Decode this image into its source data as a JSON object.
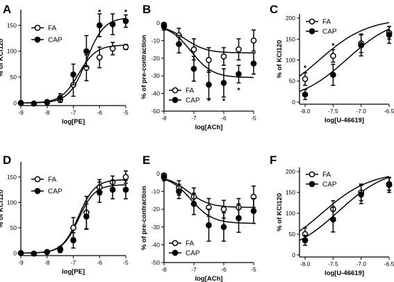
{
  "chart_data": [
    {
      "panel": "A",
      "type": "scatter",
      "xlabel": "log[PE]",
      "ylabel": "% of KCl120",
      "xlim": [
        -9,
        -5
      ],
      "ylim": [
        -5,
        180
      ],
      "xticks": [
        -9,
        -8,
        -7,
        -6,
        -5
      ],
      "yticks": [
        0,
        50,
        100,
        150
      ],
      "series": [
        {
          "name": "FA",
          "marker": "open",
          "x": [
            -9,
            -8.5,
            -8,
            -7.5,
            -7,
            -6.5,
            -6,
            -5.5,
            -5
          ],
          "y": [
            0,
            -1,
            1,
            6,
            35,
            68,
            88,
            105,
            108
          ],
          "err": [
            2,
            2,
            2,
            5,
            22,
            25,
            20,
            12,
            5
          ],
          "fit": {
            "bottom": 0,
            "top": 112,
            "ec50": -6.8,
            "hill": 1.3
          }
        },
        {
          "name": "CAP",
          "marker": "filled",
          "x": [
            -9,
            -8.5,
            -8,
            -7.5,
            -7,
            -6.5,
            -6,
            -5.5,
            -5
          ],
          "y": [
            0,
            -1,
            2,
            10,
            55,
            100,
            150,
            152,
            158
          ],
          "err": [
            2,
            2,
            3,
            8,
            20,
            30,
            22,
            20,
            12
          ],
          "fit": {
            "bottom": 0,
            "top": 165,
            "ec50": -6.5,
            "hill": 1.3
          }
        }
      ],
      "annotations": [
        {
          "text": "*",
          "x": -6,
          "y": 176
        },
        {
          "text": "*",
          "x": -5,
          "y": 176
        }
      ]
    },
    {
      "panel": "B",
      "type": "scatter",
      "xlabel": "log[ACh]",
      "ylabel": "% of pre-contraction",
      "xlim": [
        -8,
        -5
      ],
      "ylim": [
        -50,
        0
      ],
      "xticks": [
        -8,
        -7,
        -6,
        -5
      ],
      "yticks": [
        0,
        -10,
        -20,
        -30,
        -40,
        -50
      ],
      "series": [
        {
          "name": "FA",
          "marker": "open",
          "x": [
            -8,
            -7.5,
            -7,
            -6.5,
            -6,
            -5.5,
            -5
          ],
          "y": [
            -1,
            -7,
            -15,
            -21,
            -19,
            -15,
            -10
          ],
          "err": [
            2,
            4,
            6,
            7,
            5,
            6,
            6
          ],
          "fit": {
            "bottom": -1,
            "top": -17,
            "ec50": -7.3,
            "hill": 1.2
          }
        },
        {
          "name": "CAP",
          "marker": "filled",
          "x": [
            -8,
            -7.5,
            -7,
            -6.5,
            -6,
            -5.5,
            -5
          ],
          "y": [
            -2,
            -12,
            -26,
            -35,
            -34,
            -29,
            -23
          ],
          "err": [
            2,
            5,
            7,
            8,
            8,
            5,
            6
          ],
          "fit": {
            "bottom": -1,
            "top": -31,
            "ec50": -7.1,
            "hill": 1.2
          }
        }
      ],
      "annotations": [
        {
          "text": "*",
          "x": -6.5,
          "y": -44
        },
        {
          "text": "*",
          "x": -6,
          "y": -44
        },
        {
          "text": "*",
          "x": -5.5,
          "y": -38
        }
      ]
    },
    {
      "panel": "C",
      "type": "scatter",
      "xlabel": "log[U-46619]",
      "ylabel": "% of KCl120",
      "xlim": [
        -8.1,
        -6.5
      ],
      "ylim": [
        -5,
        210
      ],
      "xticks": [
        -8.0,
        -7.5,
        -7.0,
        -6.5
      ],
      "yticks": [
        0,
        50,
        100,
        150,
        200
      ],
      "tick_labels": [
        "-8.0",
        "-7.5",
        "-7.0",
        "-6.5"
      ],
      "series": [
        {
          "name": "FA",
          "marker": "open",
          "x": [
            -8,
            -7.5,
            -7,
            -6.5
          ],
          "y": [
            55,
            110,
            140,
            165
          ],
          "err": [
            15,
            15,
            22,
            15
          ],
          "fit": {
            "bottom": 0,
            "top": 200,
            "ec50": -7.75,
            "hill": 1
          }
        },
        {
          "name": "CAP",
          "marker": "filled",
          "x": [
            -8,
            -7.5,
            -7,
            -6.5
          ],
          "y": [
            18,
            65,
            135,
            160
          ],
          "err": [
            12,
            25,
            25,
            20
          ],
          "fit": {
            "bottom": 0,
            "top": 205,
            "ec50": -7.25,
            "hill": 1
          }
        }
      ],
      "annotations": [
        {
          "text": "*",
          "x": -8,
          "y": 82
        },
        {
          "text": "*",
          "x": -7.5,
          "y": 135
        }
      ]
    },
    {
      "panel": "D",
      "type": "scatter",
      "xlabel": "log[PE]",
      "ylabel": "% of KCl120",
      "xlim": [
        -9,
        -5
      ],
      "ylim": [
        -5,
        180
      ],
      "xticks": [
        -9,
        -8,
        -7,
        -6,
        -5
      ],
      "yticks": [
        0,
        50,
        100,
        150
      ],
      "series": [
        {
          "name": "FA",
          "marker": "open",
          "x": [
            -9,
            -8.5,
            -8,
            -7.5,
            -7,
            -6.5,
            -6,
            -5.5,
            -5
          ],
          "y": [
            0,
            -1,
            2,
            8,
            50,
            80,
            130,
            140,
            150
          ],
          "err": [
            2,
            2,
            2,
            5,
            20,
            32,
            15,
            12,
            12
          ],
          "fit": {
            "bottom": 0,
            "top": 145,
            "ec50": -6.8,
            "hill": 1.4
          }
        },
        {
          "name": "CAP",
          "marker": "filled",
          "x": [
            -9,
            -8.5,
            -8,
            -7.5,
            -7,
            -6.5,
            -6,
            -5.5,
            -5
          ],
          "y": [
            0,
            -1,
            2,
            6,
            25,
            72,
            120,
            125,
            125
          ],
          "err": [
            2,
            2,
            2,
            5,
            15,
            25,
            20,
            18,
            18
          ],
          "fit": {
            "bottom": 0,
            "top": 135,
            "ec50": -6.8,
            "hill": 1.4
          }
        }
      ],
      "annotations": []
    },
    {
      "panel": "E",
      "type": "scatter",
      "xlabel": "log[ACh]",
      "ylabel": "% of pre-contraction",
      "xlim": [
        -8,
        -5
      ],
      "ylim": [
        -50,
        0
      ],
      "xticks": [
        -8,
        -7,
        -6,
        -5
      ],
      "yticks": [
        0,
        -10,
        -20,
        -30,
        -40,
        -50
      ],
      "series": [
        {
          "name": "FA",
          "marker": "open",
          "x": [
            -8,
            -7.5,
            -7,
            -6.5,
            -6,
            -5.5,
            -5
          ],
          "y": [
            -1,
            -8,
            -13,
            -19,
            -20,
            -19,
            -13
          ],
          "err": [
            2,
            4,
            5,
            5,
            5,
            5,
            6
          ],
          "fit": {
            "bottom": -1,
            "top": -19,
            "ec50": -7.2,
            "hill": 1.2
          }
        },
        {
          "name": "CAP",
          "marker": "filled",
          "x": [
            -8,
            -7.5,
            -7,
            -6.5,
            -6,
            -5.5,
            -5
          ],
          "y": [
            -2,
            -10,
            -17,
            -29,
            -30,
            -25,
            -21
          ],
          "err": [
            2,
            4,
            6,
            9,
            8,
            8,
            7
          ],
          "fit": {
            "bottom": -1,
            "top": -28,
            "ec50": -7.1,
            "hill": 1.2
          }
        }
      ],
      "annotations": []
    },
    {
      "panel": "F",
      "type": "scatter",
      "xlabel": "log[U-46619]",
      "ylabel": "% of KCl120",
      "xlim": [
        -8.1,
        -6.5
      ],
      "ylim": [
        -5,
        210
      ],
      "xticks": [
        -8.0,
        -7.5,
        -7.0,
        -6.5
      ],
      "yticks": [
        0,
        50,
        100,
        150,
        200
      ],
      "tick_labels": [
        "-8.0",
        "-7.5",
        "-7.0",
        "-6.5"
      ],
      "series": [
        {
          "name": "FA",
          "marker": "open",
          "x": [
            -8,
            -7.5,
            -7,
            -6.5
          ],
          "y": [
            50,
            110,
            150,
            170
          ],
          "err": [
            15,
            20,
            20,
            15
          ],
          "fit": {
            "bottom": 0,
            "top": 200,
            "ec50": -7.7,
            "hill": 1
          }
        },
        {
          "name": "CAP",
          "marker": "filled",
          "x": [
            -8,
            -7.5,
            -7,
            -6.5
          ],
          "y": [
            35,
            85,
            145,
            168
          ],
          "err": [
            12,
            30,
            22,
            18
          ],
          "fit": {
            "bottom": 0,
            "top": 210,
            "ec50": -7.4,
            "hill": 1
          }
        }
      ],
      "annotations": []
    }
  ]
}
